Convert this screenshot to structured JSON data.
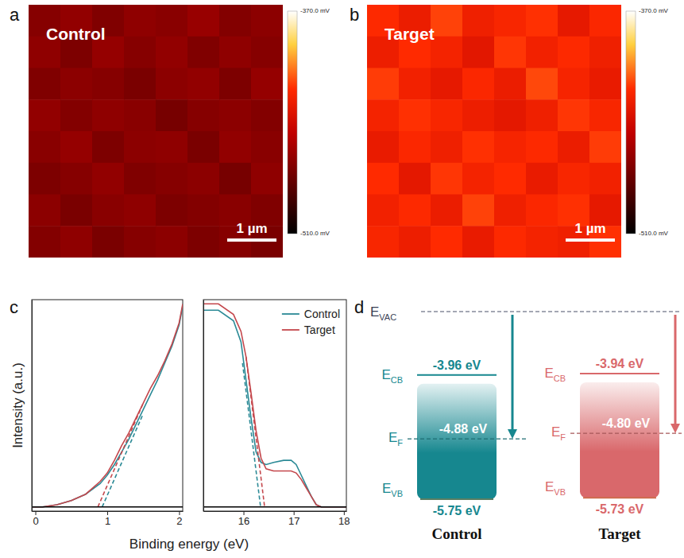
{
  "chart_data": [
    {
      "type": "heatmap",
      "panel_label": "a",
      "title": "Control",
      "scale_bar": "1 µm",
      "cells": [
        [
          -466,
          -462,
          -468,
          -463,
          -465,
          -460,
          -467,
          -464
        ],
        [
          -463,
          -469,
          -461,
          -466,
          -462,
          -468,
          -463,
          -466
        ],
        [
          -468,
          -464,
          -466,
          -470,
          -464,
          -462,
          -469,
          -461
        ],
        [
          -462,
          -467,
          -463,
          -465,
          -471,
          -466,
          -464,
          -467
        ],
        [
          -465,
          -461,
          -469,
          -464,
          -463,
          -470,
          -462,
          -465
        ],
        [
          -469,
          -466,
          -462,
          -468,
          -466,
          -464,
          -471,
          -463
        ],
        [
          -464,
          -470,
          -465,
          -463,
          -469,
          -467,
          -465,
          -468
        ],
        [
          -467,
          -463,
          -470,
          -466,
          -464,
          -469,
          -466,
          -470
        ]
      ],
      "colorbar": {
        "range": [
          -510,
          -370
        ],
        "ticks": [
          {
            "value": -370,
            "label": "-370.0 mV"
          },
          {
            "value": -510,
            "label": "-510.0 mV"
          }
        ]
      }
    },
    {
      "type": "heatmap",
      "panel_label": "b",
      "title": "Target",
      "scale_bar": "1 µm",
      "cells": [
        [
          -420,
          -428,
          -415,
          -426,
          -422,
          -418,
          -430,
          -421
        ],
        [
          -427,
          -419,
          -424,
          -432,
          -417,
          -425,
          -420,
          -426
        ],
        [
          -416,
          -425,
          -430,
          -421,
          -428,
          -414,
          -423,
          -429
        ],
        [
          -424,
          -418,
          -422,
          -427,
          -431,
          -426,
          -417,
          -422
        ],
        [
          -429,
          -421,
          -426,
          -418,
          -423,
          -420,
          -428,
          -416
        ],
        [
          -419,
          -431,
          -417,
          -424,
          -419,
          -429,
          -422,
          -425
        ],
        [
          -425,
          -420,
          -428,
          -415,
          -426,
          -421,
          -418,
          -430
        ],
        [
          -422,
          -427,
          -419,
          -429,
          -420,
          -424,
          -426,
          -418
        ]
      ],
      "colorbar": {
        "range": [
          -510,
          -370
        ],
        "ticks": [
          {
            "value": -370,
            "label": "-370.0 mV"
          },
          {
            "value": -510,
            "label": "-510.0 mV"
          }
        ]
      }
    },
    {
      "type": "line",
      "panel_label": "c",
      "x_label": "Binding energy (eV)",
      "y_label": "Intensity (a.u.)",
      "tick_labels": "x",
      "legend": "upper right",
      "subplots": [
        {
          "xlim": [
            -0.05,
            2.05
          ],
          "xticks": [
            0,
            1,
            2
          ],
          "ylim": [
            0,
            1
          ],
          "yticks": [],
          "series": [
            {
              "name": "Control",
              "color": "#2b8a96",
              "x": [
                -0.05,
                0.1,
                0.3,
                0.5,
                0.7,
                0.9,
                1.0,
                1.1,
                1.2,
                1.3,
                1.4,
                1.5,
                1.6,
                1.7,
                1.8,
                1.9,
                2.0,
                2.05
              ],
              "values": [
                0.02,
                0.02,
                0.03,
                0.05,
                0.08,
                0.13,
                0.17,
                0.22,
                0.28,
                0.34,
                0.41,
                0.48,
                0.55,
                0.62,
                0.7,
                0.78,
                0.88,
                0.97
              ]
            },
            {
              "name": "Target",
              "color": "#c4474c",
              "x": [
                -0.05,
                0.1,
                0.3,
                0.5,
                0.7,
                0.9,
                1.0,
                1.1,
                1.2,
                1.3,
                1.4,
                1.5,
                1.6,
                1.7,
                1.8,
                1.9,
                2.0,
                2.05
              ],
              "values": [
                0.02,
                0.02,
                0.03,
                0.05,
                0.08,
                0.14,
                0.18,
                0.24,
                0.31,
                0.37,
                0.44,
                0.51,
                0.58,
                0.64,
                0.71,
                0.79,
                0.89,
                0.98
              ]
            },
            {
              "color": "#2b8a96",
              "line_style": "dashed",
              "x": [
                0.93,
                1.5
              ],
              "values": [
                0.02,
                0.46
              ]
            },
            {
              "color": "#c4474c",
              "line_style": "dashed",
              "x": [
                0.87,
                1.5
              ],
              "values": [
                0.02,
                0.51
              ]
            },
            {
              "color": "#000000",
              "x": [
                -0.05,
                2.05
              ],
              "values": [
                0.02,
                0.02
              ]
            }
          ]
        },
        {
          "xlim": [
            15.2,
            18.05
          ],
          "xticks": [
            16,
            17,
            18
          ],
          "ylim": [
            0,
            1
          ],
          "yticks": [],
          "series": [
            {
              "name": "Control",
              "color": "#2b8a96",
              "x": [
                15.2,
                15.5,
                15.8,
                15.95,
                16.05,
                16.15,
                16.25,
                16.35,
                16.45,
                16.6,
                16.8,
                16.95,
                17.05,
                17.15,
                17.25,
                17.35,
                17.45,
                17.55,
                17.7,
                18.05
              ],
              "values": [
                0.95,
                0.95,
                0.9,
                0.8,
                0.62,
                0.44,
                0.28,
                0.23,
                0.22,
                0.23,
                0.24,
                0.24,
                0.22,
                0.17,
                0.12,
                0.07,
                0.03,
                0.02,
                0.02,
                0.02
              ]
            },
            {
              "name": "Target",
              "color": "#c4474c",
              "x": [
                15.2,
                15.5,
                15.8,
                15.95,
                16.05,
                16.15,
                16.25,
                16.35,
                16.45,
                16.6,
                16.8,
                16.95,
                17.05,
                17.15,
                17.25,
                17.35,
                17.45,
                17.55,
                17.7,
                18.05
              ],
              "values": [
                0.98,
                0.98,
                0.93,
                0.85,
                0.73,
                0.56,
                0.38,
                0.25,
                0.2,
                0.19,
                0.19,
                0.19,
                0.18,
                0.15,
                0.11,
                0.07,
                0.03,
                0.02,
                0.02,
                0.02
              ]
            },
            {
              "color": "#2b8a96",
              "line_style": "dashed",
              "x": [
                15.98,
                16.34
              ],
              "values": [
                0.7,
                0.02
              ]
            },
            {
              "color": "#c4474c",
              "line_style": "dashed",
              "x": [
                16.05,
                16.42
              ],
              "values": [
                0.73,
                0.02
              ]
            },
            {
              "color": "#000000",
              "x": [
                15.2,
                18.05
              ],
              "values": [
                0.02,
                0.02
              ]
            }
          ]
        }
      ]
    },
    {
      "type": "energy_level",
      "panel_label": "d",
      "vacuum_level": {
        "symbol": "E",
        "subscript": "VAC"
      },
      "levels": [
        {
          "symbol": "E",
          "subscript": "CB"
        },
        {
          "symbol": "E",
          "subscript": "F"
        },
        {
          "symbol": "E",
          "subscript": "VB"
        }
      ],
      "groups": [
        {
          "name": "Control",
          "color": "#16878f",
          "values": [
            -3.96,
            -4.88,
            -5.75
          ],
          "value_labels": [
            "-3.96 eV",
            "-4.88 eV",
            "-5.75 eV"
          ]
        },
        {
          "name": "Target",
          "color": "#d9686b",
          "values": [
            -3.94,
            -4.8,
            -5.73
          ],
          "value_labels": [
            "-3.94 eV",
            "-4.80 eV",
            "-5.73 eV"
          ]
        }
      ]
    }
  ]
}
